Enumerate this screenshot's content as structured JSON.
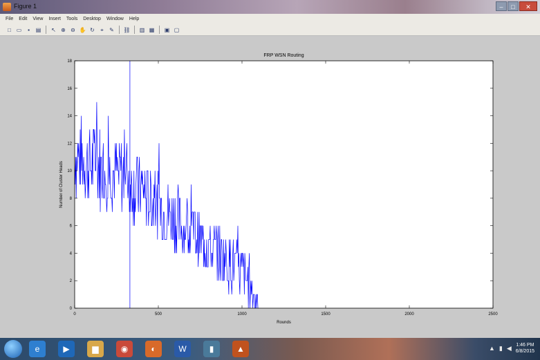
{
  "window": {
    "title": "Figure 1",
    "min_label": "–",
    "max_label": "□",
    "close_label": "✕"
  },
  "menu": [
    "File",
    "Edit",
    "View",
    "Insert",
    "Tools",
    "Desktop",
    "Window",
    "Help"
  ],
  "toolbar": [
    {
      "name": "new-figure-icon",
      "glyph": "□"
    },
    {
      "name": "open-file-icon",
      "glyph": "▭"
    },
    {
      "name": "save-icon",
      "glyph": "▪"
    },
    {
      "name": "print-icon",
      "glyph": "▤"
    },
    {
      "sep": true
    },
    {
      "name": "edit-plot-arrow-icon",
      "glyph": "↖"
    },
    {
      "name": "zoom-in-icon",
      "glyph": "⊕"
    },
    {
      "name": "zoom-out-icon",
      "glyph": "⊖"
    },
    {
      "name": "pan-icon",
      "glyph": "✋"
    },
    {
      "name": "rotate-icon",
      "glyph": "↻"
    },
    {
      "name": "data-cursor-icon",
      "glyph": "⌖"
    },
    {
      "name": "brush-icon",
      "glyph": "✎"
    },
    {
      "sep": true
    },
    {
      "name": "link-plot-icon",
      "glyph": "⛓"
    },
    {
      "sep": true
    },
    {
      "name": "insert-colorbar-icon",
      "glyph": "▥"
    },
    {
      "name": "insert-legend-icon",
      "glyph": "▦"
    },
    {
      "sep": true
    },
    {
      "name": "hide-plot-tools-icon",
      "glyph": "▣"
    },
    {
      "name": "show-plot-tools-icon",
      "glyph": "▢"
    }
  ],
  "chart_data": {
    "type": "line",
    "title": "FRP WSN Routing",
    "xlabel": "Rounds",
    "ylabel": "Number of Cluster Heads",
    "xlim": [
      0,
      2500
    ],
    "ylim": [
      0,
      18
    ],
    "xticks": [
      0,
      500,
      1000,
      1500,
      2000,
      2500
    ],
    "yticks": [
      0,
      2,
      4,
      6,
      8,
      10,
      12,
      14,
      16,
      18
    ],
    "grid": false,
    "series_color": "#0000ff",
    "series": [
      {
        "trend_x": [
          0,
          100,
          200,
          300,
          400,
          500,
          600,
          700,
          800,
          900,
          1000,
          1050,
          1100
        ],
        "trend_mean": [
          11,
          10.5,
          10,
          9.5,
          8.5,
          7.5,
          6.5,
          5.5,
          4.5,
          3.5,
          2.5,
          1.5,
          0.5
        ],
        "noise_amplitude": 3,
        "max_y": 18
      }
    ]
  },
  "taskbar": {
    "apps": [
      {
        "name": "internet-explorer-icon",
        "glyph": "e",
        "color": "#2e7fd0"
      },
      {
        "name": "media-player-icon",
        "glyph": "▶",
        "color": "#1f68b8"
      },
      {
        "name": "file-explorer-icon",
        "glyph": "▆",
        "color": "#d8a84a"
      },
      {
        "name": "chrome-icon",
        "glyph": "◉",
        "color": "#c94a3a"
      },
      {
        "name": "firefox-icon",
        "glyph": "◐",
        "color": "#d86a2a"
      },
      {
        "name": "word-icon",
        "glyph": "W",
        "color": "#2a5aa8"
      },
      {
        "name": "app-icon",
        "glyph": "▮",
        "color": "#4a7a9a"
      },
      {
        "name": "matlab-icon",
        "glyph": "▲",
        "color": "#c0521e"
      }
    ],
    "time": "1:46 PM",
    "date": "6/8/2015"
  }
}
